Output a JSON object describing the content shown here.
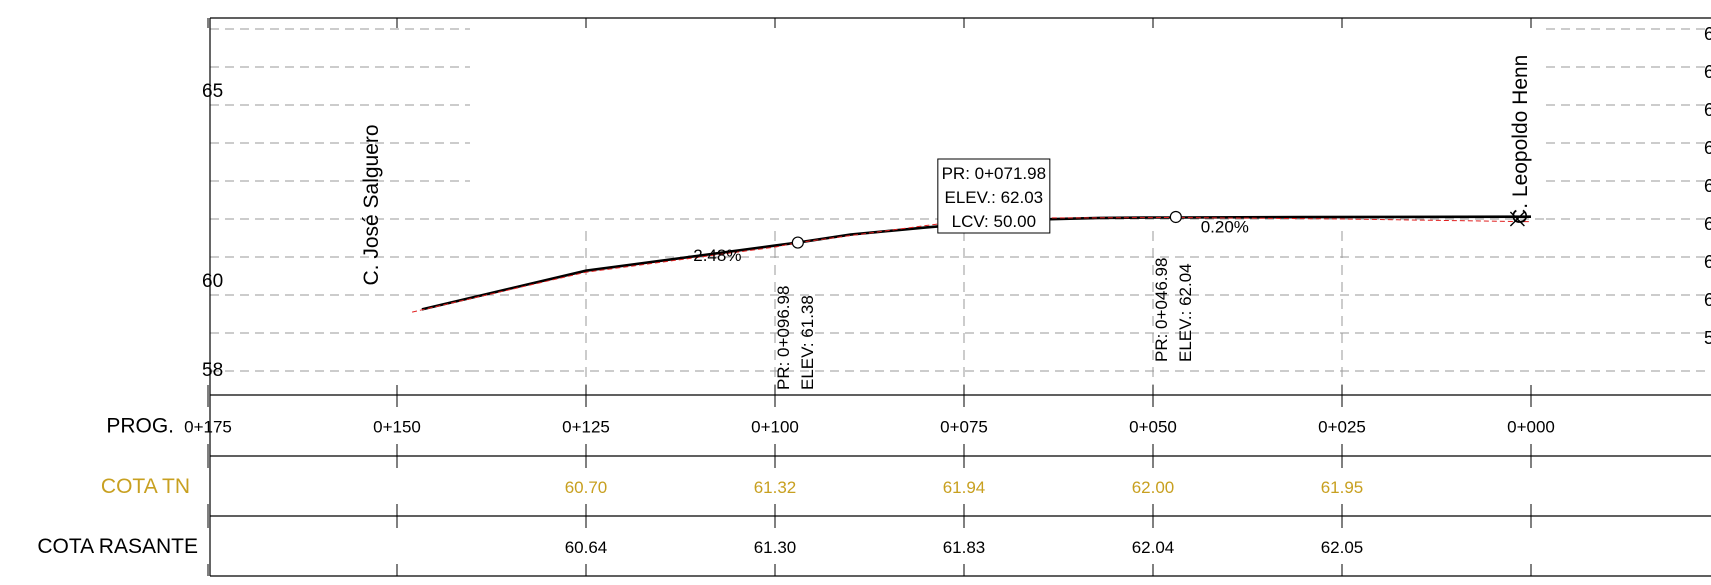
{
  "chart_data": {
    "type": "line",
    "xlabel": "",
    "ylabel": "",
    "x_reversed": true,
    "xlim": [
      0,
      175
    ],
    "ylim": [
      58,
      67
    ],
    "grid": "dashed horizontal every 1 m, dashed vertical at stations",
    "y_ticks": [
      {
        "value": 65,
        "label": "65"
      },
      {
        "value": 60,
        "label": "60"
      },
      {
        "value": 58,
        "label": "58"
      }
    ],
    "right_labels": [
      "6",
      "6",
      "6",
      "6",
      "6",
      "6",
      "6",
      "6",
      "5"
    ],
    "streets": [
      {
        "name": "C. José Salguero",
        "station": 152.5
      },
      {
        "name": "C. Leopoldo Henn",
        "station": 0.5
      }
    ],
    "series": [
      {
        "name": "",
        "style": "black solid",
        "x": [
          146.7,
          125,
          100,
          96.98,
          90,
          80,
          71.98,
          65,
          57,
          50,
          46.98,
          30,
          0
        ],
        "y": [
          59.62,
          60.64,
          61.3,
          61.38,
          61.59,
          61.78,
          61.91,
          61.99,
          62.03,
          62.04,
          62.04,
          62.05,
          62.06
        ]
      },
      {
        "name": "",
        "style": "red dashed",
        "x": [
          148,
          125,
          100,
          96.98,
          80,
          71.98,
          60,
          46.98,
          25,
          0
        ],
        "y": [
          59.55,
          60.6,
          61.26,
          61.38,
          61.83,
          62.03,
          62.03,
          62.04,
          62.0,
          61.93
        ]
      }
    ],
    "annotations": {
      "boxed": {
        "lines": [
          "PR: 0+071.98",
          "ELEV.: 62.03",
          "LCV: 50.00"
        ],
        "station": 71.98,
        "elev": 62.03
      },
      "vertical": [
        {
          "lines": [
            "PR: 0+096.98",
            "ELEV: 61.38"
          ],
          "station": 96.98,
          "elev": 61.38
        },
        {
          "lines": [
            "PR: 0+046.98",
            "ELEV.: 62.04"
          ],
          "station": 46.98,
          "elev": 62.04
        }
      ],
      "slopes": [
        {
          "text": "-2.48%",
          "station": 108,
          "elev": 60.9
        },
        {
          "text": "0.20%",
          "station": 40.5,
          "elev": 61.65
        }
      ]
    },
    "table": {
      "rows": [
        {
          "label": "PROG.",
          "values": [
            "0+175",
            "0+150",
            "0+125",
            "0+100",
            "0+075",
            "0+050",
            "0+025",
            "0+000"
          ]
        },
        {
          "label": "COTA TN",
          "color": "#c8a020",
          "values": [
            "",
            "",
            "60.70",
            "61.32",
            "61.94",
            "62.00",
            "61.95",
            ""
          ]
        },
        {
          "label": "COTA RASANTE",
          "values": [
            "",
            "",
            "60.64",
            "61.30",
            "61.83",
            "62.04",
            "62.05",
            ""
          ]
        }
      ]
    }
  }
}
